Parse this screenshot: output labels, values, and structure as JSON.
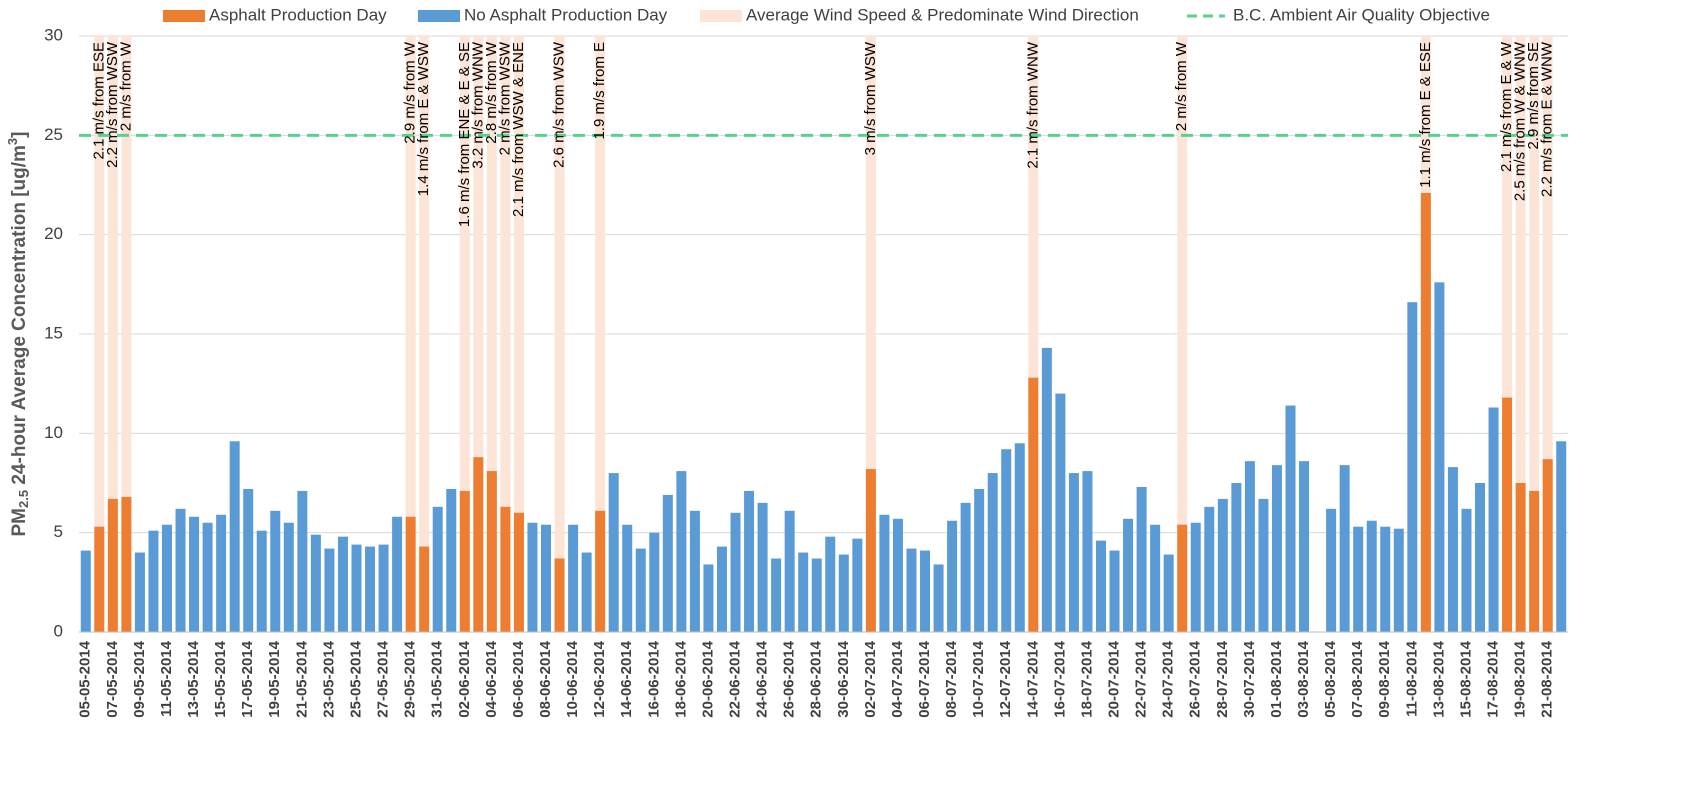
{
  "chart_data": {
    "type": "bar",
    "y_label": {
      "prefix": "PM",
      "sub": "2.5",
      "middle": " 24-hour Average Concentration [ug/m",
      "sup": "3",
      "suffix": "]"
    },
    "categories": [
      "05-05-2014",
      null,
      "07-05-2014",
      null,
      "09-05-2014",
      null,
      "11-05-2014",
      null,
      "13-05-2014",
      null,
      "15-05-2014",
      null,
      "17-05-2014",
      null,
      "19-05-2014",
      null,
      "21-05-2014",
      null,
      "23-05-2014",
      null,
      "25-05-2014",
      null,
      "27-05-2014",
      null,
      "29-05-2014",
      null,
      "31-05-2014",
      null,
      "02-06-2014",
      null,
      "04-06-2014",
      null,
      "06-06-2014",
      null,
      "08-06-2014",
      null,
      "10-06-2014",
      null,
      "12-06-2014",
      null,
      "14-06-2014",
      null,
      "16-06-2014",
      null,
      "18-06-2014",
      null,
      "20-06-2014",
      null,
      "22-06-2014",
      null,
      "24-06-2014",
      null,
      "26-06-2014",
      null,
      "28-06-2014",
      null,
      "30-06-2014",
      null,
      "02-07-2014",
      null,
      "04-07-2014",
      null,
      "06-07-2014",
      null,
      "08-07-2014",
      null,
      "10-07-2014",
      null,
      "12-07-2014",
      null,
      "14-07-2014",
      null,
      "16-07-2014",
      null,
      "18-07-2014",
      null,
      "20-07-2014",
      null,
      "22-07-2014",
      null,
      "24-07-2014",
      null,
      "26-07-2014",
      null,
      "28-07-2014",
      null,
      "30-07-2014",
      null,
      "01-08-2014",
      null,
      "03-08-2014",
      null,
      "05-08-2014",
      null,
      "07-08-2014",
      null,
      "09-08-2014",
      null,
      "11-08-2014",
      null,
      "13-08-2014",
      null,
      "15-08-2014",
      null,
      "17-08-2014",
      null,
      "19-08-2014",
      null,
      "21-08-2014",
      null
    ],
    "series": [
      {
        "name": "Asphalt Production Day",
        "color": "#ed7d31",
        "values": [
          null,
          5.3,
          6.7,
          6.8,
          null,
          null,
          null,
          null,
          null,
          null,
          null,
          null,
          null,
          null,
          null,
          null,
          null,
          null,
          null,
          null,
          null,
          null,
          null,
          null,
          5.8,
          4.3,
          null,
          null,
          7.1,
          8.8,
          8.1,
          6.3,
          6.0,
          null,
          null,
          3.7,
          null,
          null,
          6.1,
          null,
          null,
          null,
          null,
          null,
          null,
          null,
          null,
          null,
          null,
          null,
          null,
          null,
          null,
          null,
          null,
          null,
          null,
          null,
          8.2,
          null,
          null,
          null,
          null,
          null,
          null,
          null,
          null,
          null,
          null,
          null,
          12.8,
          null,
          null,
          null,
          null,
          null,
          null,
          null,
          null,
          null,
          null,
          5.4,
          null,
          null,
          null,
          null,
          null,
          null,
          null,
          null,
          null,
          null,
          null,
          null,
          null,
          null,
          null,
          null,
          null,
          22.1,
          null,
          null,
          null,
          null,
          null,
          11.8,
          7.5,
          7.1,
          8.7,
          null
        ]
      },
      {
        "name": "No Asphalt Production Day",
        "color": "#5b9bd5",
        "values": [
          4.1,
          null,
          null,
          null,
          4.0,
          5.1,
          5.4,
          6.2,
          5.8,
          5.5,
          5.9,
          9.6,
          7.2,
          5.1,
          6.1,
          5.5,
          7.1,
          4.9,
          4.2,
          4.8,
          4.4,
          4.3,
          4.4,
          5.8,
          null,
          null,
          6.3,
          7.2,
          null,
          null,
          null,
          null,
          null,
          5.5,
          5.4,
          null,
          5.4,
          4.0,
          null,
          8.0,
          5.4,
          4.2,
          5.0,
          6.9,
          8.1,
          6.1,
          3.4,
          4.3,
          6.0,
          7.1,
          6.5,
          3.7,
          6.1,
          4.0,
          3.7,
          4.8,
          3.9,
          4.7,
          null,
          5.9,
          5.7,
          4.2,
          4.1,
          3.4,
          5.6,
          6.5,
          7.2,
          8.0,
          9.2,
          9.5,
          null,
          14.3,
          12.0,
          8.0,
          8.1,
          4.6,
          4.1,
          5.7,
          7.3,
          5.4,
          3.9,
          null,
          5.5,
          6.3,
          6.7,
          7.5,
          8.6,
          6.7,
          8.4,
          11.4,
          8.6,
          null,
          6.2,
          8.4,
          5.3,
          5.6,
          5.3,
          5.2,
          16.6,
          null,
          17.6,
          8.3,
          6.2,
          7.5,
          11.3,
          null,
          null,
          null,
          null,
          9.6
        ]
      }
    ],
    "wind": {
      "name": "Average Wind Speed & Predominate Wind Direction",
      "color": "#fce4d6",
      "labels": [
        null,
        "2.1 m/s from ESE",
        "2.2 m/s from WSW",
        "2 m/s from W",
        null,
        null,
        null,
        null,
        null,
        null,
        null,
        null,
        null,
        null,
        null,
        null,
        null,
        null,
        null,
        null,
        null,
        null,
        null,
        null,
        "2.9 m/s from W",
        "1.4 m/s from E & WSW",
        null,
        null,
        "1.6 m/s from ENE & E & SE",
        "3.2 m/s from WNW",
        "2.8 m/s from W",
        "2 m/s from WSW",
        "2.1 m/s from WSW & ENE",
        null,
        null,
        "2.6 m/s from WSW",
        null,
        null,
        "1.9 m/s from E",
        null,
        null,
        null,
        null,
        null,
        null,
        null,
        null,
        null,
        null,
        null,
        null,
        null,
        null,
        null,
        null,
        null,
        null,
        null,
        "3 m/s from WSW",
        null,
        null,
        null,
        null,
        null,
        null,
        null,
        null,
        null,
        null,
        null,
        "2.1 m/s from WNW",
        null,
        null,
        null,
        null,
        null,
        null,
        null,
        null,
        null,
        null,
        "2 m/s from W",
        null,
        null,
        null,
        null,
        null,
        null,
        null,
        null,
        null,
        null,
        null,
        null,
        null,
        null,
        null,
        null,
        null,
        "1.1 m/s from E & ESE",
        null,
        null,
        null,
        null,
        null,
        "2.1 m/s from E & W",
        "2.5 m/s from W & WNW",
        "2.9 m/s from SE",
        "2.2 m/s from E & WNW",
        null
      ]
    },
    "objective": {
      "name": "B.C. Ambient Air Quality Objective",
      "value": 25,
      "color": "#57d28c"
    },
    "ylim": [
      0,
      30
    ],
    "yticks": [
      0,
      5,
      10,
      15,
      20,
      25,
      30
    ],
    "grid": true
  }
}
